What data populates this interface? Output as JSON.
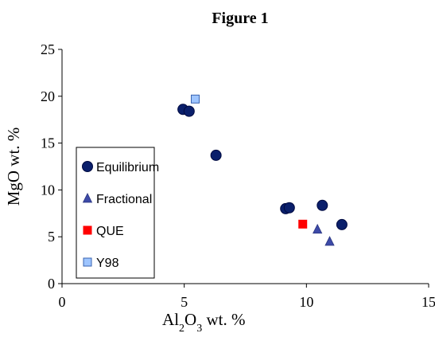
{
  "chart_data": {
    "type": "scatter",
    "title": "Figure 1",
    "xlabel": {
      "main": "Al",
      "sub": "2",
      "main2": "O",
      "sub2": "3",
      "rest": " wt. %"
    },
    "ylabel": "MgO wt. %",
    "xlim": [
      0,
      15
    ],
    "ylim": [
      0,
      25
    ],
    "xticks": [
      "0",
      "5",
      "10",
      "15"
    ],
    "yticks": [
      "0",
      "5",
      "10",
      "15",
      "20",
      "25"
    ],
    "grid": false,
    "legend_position": "left-middle",
    "series": [
      {
        "name": "Equilibrium",
        "marker": "circle",
        "color": "#0a1f6b",
        "points": [
          [
            4.95,
            18.6
          ],
          [
            5.2,
            18.4
          ],
          [
            6.3,
            13.7
          ],
          [
            9.15,
            8.0
          ],
          [
            9.3,
            8.1
          ],
          [
            10.65,
            8.35
          ],
          [
            11.45,
            6.3
          ]
        ]
      },
      {
        "name": "Fractional",
        "marker": "triangle",
        "color": "#3d4aa8",
        "points": [
          [
            10.45,
            5.8
          ],
          [
            10.95,
            4.5
          ]
        ]
      },
      {
        "name": "QUE",
        "marker": "square",
        "color": "#ff0000",
        "points": [
          [
            9.85,
            6.35
          ]
        ]
      },
      {
        "name": "Y98",
        "marker": "square",
        "color": "#9ec5ff",
        "edge": "#3a64b0",
        "points": [
          [
            5.45,
            19.7
          ]
        ]
      }
    ]
  }
}
